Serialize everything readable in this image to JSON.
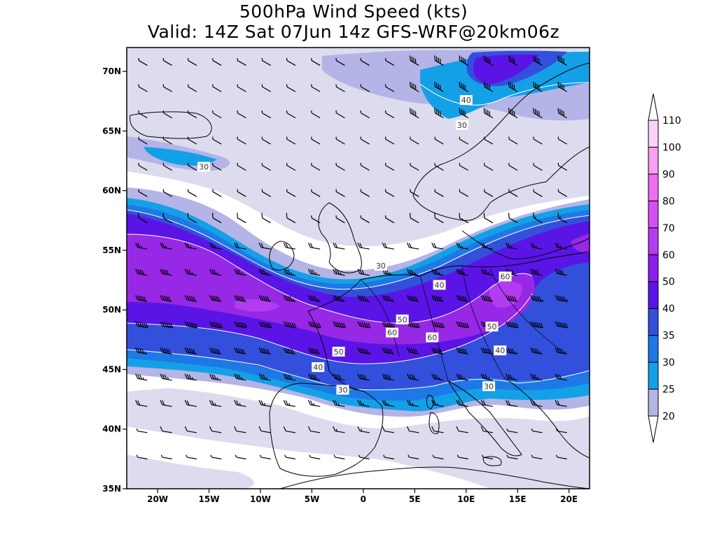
{
  "title": {
    "line1": "500hPa Wind Speed (kts)",
    "line2": "Valid: 14Z Sat 07Jun 14z GFS-WRF@20km06z"
  },
  "map": {
    "extent": {
      "lon_min": -23,
      "lon_max": 22,
      "lat_min": 35,
      "lat_max": 72
    },
    "lat_ticks": [
      {
        "value": 70,
        "label": "70N"
      },
      {
        "value": 65,
        "label": "65N"
      },
      {
        "value": 60,
        "label": "60N"
      },
      {
        "value": 55,
        "label": "55N"
      },
      {
        "value": 50,
        "label": "50N"
      },
      {
        "value": 45,
        "label": "45N"
      },
      {
        "value": 40,
        "label": "40N"
      },
      {
        "value": 35,
        "label": "35N"
      }
    ],
    "lon_ticks": [
      {
        "value": -20,
        "label": "20W"
      },
      {
        "value": -15,
        "label": "15W"
      },
      {
        "value": -10,
        "label": "10W"
      },
      {
        "value": -5,
        "label": "5W"
      },
      {
        "value": 0,
        "label": "0"
      },
      {
        "value": 5,
        "label": "5E"
      },
      {
        "value": 10,
        "label": "10E"
      },
      {
        "value": 15,
        "label": "15E"
      },
      {
        "value": 20,
        "label": "20E"
      }
    ],
    "contour_labels": [
      {
        "text": "40",
        "lon": 10,
        "lat": 67.6
      },
      {
        "text": "30",
        "lon": 9.6,
        "lat": 65.5
      },
      {
        "text": "30",
        "lon": -15.5,
        "lat": 62
      },
      {
        "text": "30",
        "lon": 1.7,
        "lat": 53.7
      },
      {
        "text": "40",
        "lon": 7.4,
        "lat": 52.1
      },
      {
        "text": "60",
        "lon": 13.8,
        "lat": 52.8
      },
      {
        "text": "50",
        "lon": 3.8,
        "lat": 49.2
      },
      {
        "text": "50",
        "lon": 12.5,
        "lat": 48.6
      },
      {
        "text": "60",
        "lon": 2.8,
        "lat": 48.1
      },
      {
        "text": "60",
        "lon": 6.7,
        "lat": 47.7
      },
      {
        "text": "50",
        "lon": -2.4,
        "lat": 46.5
      },
      {
        "text": "40",
        "lon": 13.3,
        "lat": 46.6
      },
      {
        "text": "40",
        "lon": -4.4,
        "lat": 45.2
      },
      {
        "text": "30",
        "lon": -2,
        "lat": 43.3
      },
      {
        "text": "30",
        "lon": 12.2,
        "lat": 43.6
      }
    ]
  },
  "colorbar": {
    "levels": [
      "20",
      "25",
      "30",
      "35",
      "40",
      "50",
      "60",
      "70",
      "80",
      "90",
      "100",
      "110"
    ],
    "colors": [
      "#dcdcee",
      "#b4b4e6",
      "#14a0e6",
      "#1e78e6",
      "#3250dc",
      "#5a14e6",
      "#8c1eeb",
      "#b43cf0",
      "#d250f0",
      "#f06ef0",
      "#f5a0f5",
      "#fad2fa"
    ]
  },
  "colors": {
    "band_20": "#dcdcee",
    "band_25": "#b4b4e6",
    "band_30": "#14a0e6",
    "band_35": "#1e78e6",
    "band_40": "#3250dc",
    "band_50": "#5a14e6",
    "band_60": "#9628e6"
  }
}
